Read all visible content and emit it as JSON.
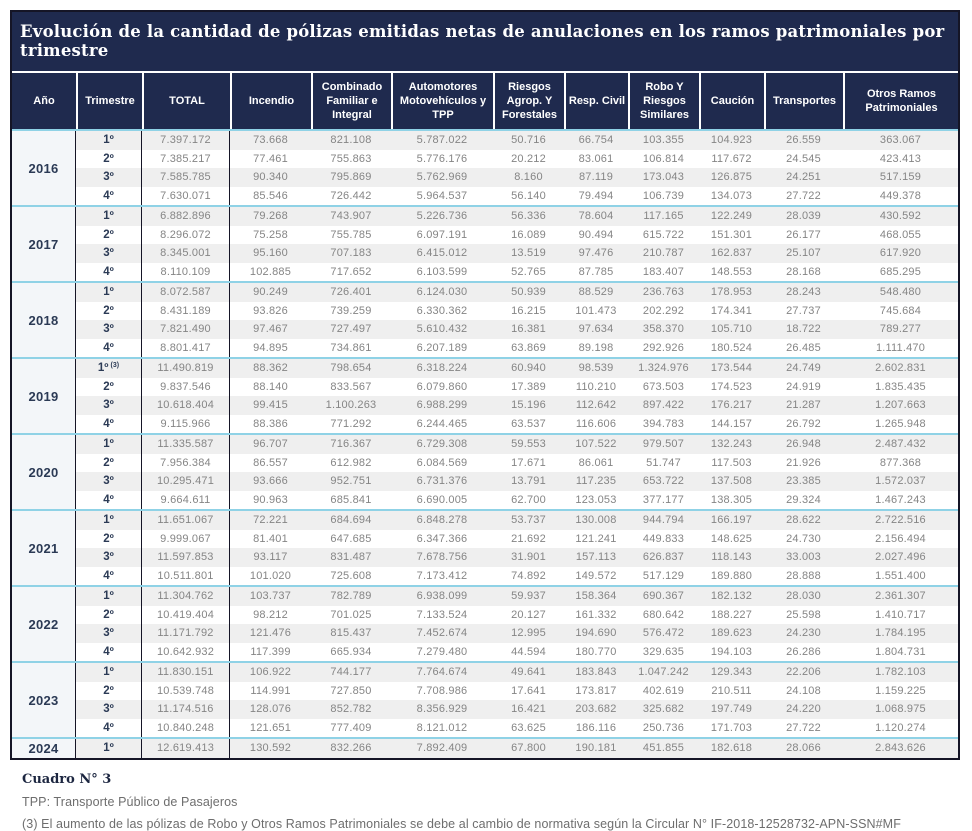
{
  "title": "Evolución de la cantidad de pólizas emitidas netas de anulaciones en los ramos patrimoniales por trimestre",
  "footer": {
    "caption": "Cuadro N° 3",
    "tpp_note": "TPP: Transporte Público de Pasajeros",
    "footnote": "(3) El aumento de las pólizas de Robo y Otros Ramos Patrimoniales se debe al cambio de normativa según la Circular N° IF-2018-12528732-APN-SSN#MF"
  },
  "colors": {
    "header_navy": "#1f2a4e",
    "separator_cyan": "#8fd2e6",
    "row_alt_gray": "#efefef",
    "data_text_gray": "#858585",
    "dark_text_navy": "#2b3a55"
  },
  "chart_data": {
    "type": "table",
    "title": "Evolución de la cantidad de pólizas emitidas netas de anulaciones en los ramos patrimoniales por trimestre",
    "columns": [
      "Año",
      "Trimestre",
      "TOTAL",
      "Incendio",
      "Combinado Familiar e Integral",
      "Automotores Motovehículos y TPP",
      "Riesgos Agrop. Y Forestales",
      "Resp. Civil",
      "Robo Y Riesgos Similares",
      "Caución",
      "Transportes",
      "Otros Ramos Patrimoniales"
    ],
    "year_groups": [
      {
        "year": "2016",
        "rows": [
          {
            "q": "1º",
            "note": "",
            "v": [
              "7.397.172",
              "73.668",
              "821.108",
              "5.787.022",
              "50.716",
              "66.754",
              "103.355",
              "104.923",
              "26.559",
              "363.067"
            ]
          },
          {
            "q": "2º",
            "note": "",
            "v": [
              "7.385.217",
              "77.461",
              "755.863",
              "5.776.176",
              "20.212",
              "83.061",
              "106.814",
              "117.672",
              "24.545",
              "423.413"
            ]
          },
          {
            "q": "3º",
            "note": "",
            "v": [
              "7.585.785",
              "90.340",
              "795.869",
              "5.762.969",
              "8.160",
              "87.119",
              "173.043",
              "126.875",
              "24.251",
              "517.159"
            ]
          },
          {
            "q": "4º",
            "note": "",
            "v": [
              "7.630.071",
              "85.546",
              "726.442",
              "5.964.537",
              "56.140",
              "79.494",
              "106.739",
              "134.073",
              "27.722",
              "449.378"
            ]
          }
        ]
      },
      {
        "year": "2017",
        "rows": [
          {
            "q": "1º",
            "note": "",
            "v": [
              "6.882.896",
              "79.268",
              "743.907",
              "5.226.736",
              "56.336",
              "78.604",
              "117.165",
              "122.249",
              "28.039",
              "430.592"
            ]
          },
          {
            "q": "2º",
            "note": "",
            "v": [
              "8.296.072",
              "75.258",
              "755.785",
              "6.097.191",
              "16.089",
              "90.494",
              "615.722",
              "151.301",
              "26.177",
              "468.055"
            ]
          },
          {
            "q": "3º",
            "note": "",
            "v": [
              "8.345.001",
              "95.160",
              "707.183",
              "6.415.012",
              "13.519",
              "97.476",
              "210.787",
              "162.837",
              "25.107",
              "617.920"
            ]
          },
          {
            "q": "4º",
            "note": "",
            "v": [
              "8.110.109",
              "102.885",
              "717.652",
              "6.103.599",
              "52.765",
              "87.785",
              "183.407",
              "148.553",
              "28.168",
              "685.295"
            ]
          }
        ]
      },
      {
        "year": "2018",
        "rows": [
          {
            "q": "1º",
            "note": "",
            "v": [
              "8.072.587",
              "90.249",
              "726.401",
              "6.124.030",
              "50.939",
              "88.529",
              "236.763",
              "178.953",
              "28.243",
              "548.480"
            ]
          },
          {
            "q": "2º",
            "note": "",
            "v": [
              "8.431.189",
              "93.826",
              "739.259",
              "6.330.362",
              "16.215",
              "101.473",
              "202.292",
              "174.341",
              "27.737",
              "745.684"
            ]
          },
          {
            "q": "3º",
            "note": "",
            "v": [
              "7.821.490",
              "97.467",
              "727.497",
              "5.610.432",
              "16.381",
              "97.634",
              "358.370",
              "105.710",
              "18.722",
              "789.277"
            ]
          },
          {
            "q": "4º",
            "note": "",
            "v": [
              "8.801.417",
              "94.895",
              "734.861",
              "6.207.189",
              "63.869",
              "89.198",
              "292.926",
              "180.524",
              "26.485",
              "1.111.470"
            ]
          }
        ]
      },
      {
        "year": "2019",
        "rows": [
          {
            "q": "1º",
            "note": "(3)",
            "v": [
              "11.490.819",
              "88.362",
              "798.654",
              "6.318.224",
              "60.940",
              "98.539",
              "1.324.976",
              "173.544",
              "24.749",
              "2.602.831"
            ]
          },
          {
            "q": "2º",
            "note": "",
            "v": [
              "9.837.546",
              "88.140",
              "833.567",
              "6.079.860",
              "17.389",
              "110.210",
              "673.503",
              "174.523",
              "24.919",
              "1.835.435"
            ]
          },
          {
            "q": "3º",
            "note": "",
            "v": [
              "10.618.404",
              "99.415",
              "1.100.263",
              "6.988.299",
              "15.196",
              "112.642",
              "897.422",
              "176.217",
              "21.287",
              "1.207.663"
            ]
          },
          {
            "q": "4º",
            "note": "",
            "v": [
              "9.115.966",
              "88.386",
              "771.292",
              "6.244.465",
              "63.537",
              "116.606",
              "394.783",
              "144.157",
              "26.792",
              "1.265.948"
            ]
          }
        ]
      },
      {
        "year": "2020",
        "rows": [
          {
            "q": "1º",
            "note": "",
            "v": [
              "11.335.587",
              "96.707",
              "716.367",
              "6.729.308",
              "59.553",
              "107.522",
              "979.507",
              "132.243",
              "26.948",
              "2.487.432"
            ]
          },
          {
            "q": "2º",
            "note": "",
            "v": [
              "7.956.384",
              "86.557",
              "612.982",
              "6.084.569",
              "17.671",
              "86.061",
              "51.747",
              "117.503",
              "21.926",
              "877.368"
            ]
          },
          {
            "q": "3º",
            "note": "",
            "v": [
              "10.295.471",
              "93.666",
              "952.751",
              "6.731.376",
              "13.791",
              "117.235",
              "653.722",
              "137.508",
              "23.385",
              "1.572.037"
            ]
          },
          {
            "q": "4º",
            "note": "",
            "v": [
              "9.664.611",
              "90.963",
              "685.841",
              "6.690.005",
              "62.700",
              "123.053",
              "377.177",
              "138.305",
              "29.324",
              "1.467.243"
            ]
          }
        ]
      },
      {
        "year": "2021",
        "rows": [
          {
            "q": "1º",
            "note": "",
            "v": [
              "11.651.067",
              "72.221",
              "684.694",
              "6.848.278",
              "53.737",
              "130.008",
              "944.794",
              "166.197",
              "28.622",
              "2.722.516"
            ]
          },
          {
            "q": "2º",
            "note": "",
            "v": [
              "9.999.067",
              "81.401",
              "647.685",
              "6.347.366",
              "21.692",
              "121.241",
              "449.833",
              "148.625",
              "24.730",
              "2.156.494"
            ]
          },
          {
            "q": "3º",
            "note": "",
            "v": [
              "11.597.853",
              "93.117",
              "831.487",
              "7.678.756",
              "31.901",
              "157.113",
              "626.837",
              "118.143",
              "33.003",
              "2.027.496"
            ]
          },
          {
            "q": "4º",
            "note": "",
            "v": [
              "10.511.801",
              "101.020",
              "725.608",
              "7.173.412",
              "74.892",
              "149.572",
              "517.129",
              "189.880",
              "28.888",
              "1.551.400"
            ]
          }
        ]
      },
      {
        "year": "2022",
        "rows": [
          {
            "q": "1º",
            "note": "",
            "v": [
              "11.304.762",
              "103.737",
              "782.789",
              "6.938.099",
              "59.937",
              "158.364",
              "690.367",
              "182.132",
              "28.030",
              "2.361.307"
            ]
          },
          {
            "q": "2º",
            "note": "",
            "v": [
              "10.419.404",
              "98.212",
              "701.025",
              "7.133.524",
              "20.127",
              "161.332",
              "680.642",
              "188.227",
              "25.598",
              "1.410.717"
            ]
          },
          {
            "q": "3º",
            "note": "",
            "v": [
              "11.171.792",
              "121.476",
              "815.437",
              "7.452.674",
              "12.995",
              "194.690",
              "576.472",
              "189.623",
              "24.230",
              "1.784.195"
            ]
          },
          {
            "q": "4º",
            "note": "",
            "v": [
              "10.642.932",
              "117.399",
              "665.934",
              "7.279.480",
              "44.594",
              "180.770",
              "329.635",
              "194.103",
              "26.286",
              "1.804.731"
            ]
          }
        ]
      },
      {
        "year": "2023",
        "rows": [
          {
            "q": "1º",
            "note": "",
            "v": [
              "11.830.151",
              "106.922",
              "744.177",
              "7.764.674",
              "49.641",
              "183.843",
              "1.047.242",
              "129.343",
              "22.206",
              "1.782.103"
            ]
          },
          {
            "q": "2º",
            "note": "",
            "v": [
              "10.539.748",
              "114.991",
              "727.850",
              "7.708.986",
              "17.641",
              "173.817",
              "402.619",
              "210.511",
              "24.108",
              "1.159.225"
            ]
          },
          {
            "q": "3º",
            "note": "",
            "v": [
              "11.174.516",
              "128.076",
              "852.782",
              "8.356.929",
              "16.421",
              "203.682",
              "325.682",
              "197.749",
              "24.220",
              "1.068.975"
            ]
          },
          {
            "q": "4º",
            "note": "",
            "v": [
              "10.840.248",
              "121.651",
              "777.409",
              "8.121.012",
              "63.625",
              "186.116",
              "250.736",
              "171.703",
              "27.722",
              "1.120.274"
            ]
          }
        ]
      },
      {
        "year": "2024",
        "rows": [
          {
            "q": "1º",
            "note": "",
            "v": [
              "12.619.413",
              "130.592",
              "832.266",
              "7.892.409",
              "67.800",
              "190.181",
              "451.855",
              "182.618",
              "28.066",
              "2.843.626"
            ]
          }
        ]
      }
    ]
  }
}
